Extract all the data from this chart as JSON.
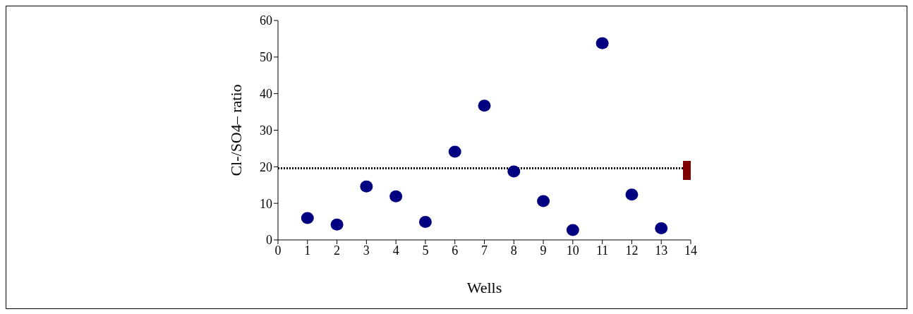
{
  "chart_data": {
    "type": "scatter",
    "xlabel": "Wells",
    "ylabel": "Cl-/SO4– ratio",
    "series": [
      {
        "color": "#000080",
        "marker": "circle",
        "x": [
          1,
          2,
          3,
          4,
          5,
          6,
          7,
          8,
          9,
          10,
          11,
          12,
          13
        ],
        "values": [
          6.0,
          4.2,
          14.6,
          11.9,
          4.9,
          24.1,
          36.7,
          18.7,
          10.6,
          2.7,
          53.8,
          12.4,
          3.2
        ]
      },
      {
        "color": "#800000",
        "marker": "square",
        "x": [
          14
        ],
        "values": [
          19.1
        ]
      }
    ],
    "ref_lines": [
      {
        "axis": "y",
        "value": 19.6,
        "color": "#000000",
        "line_style": "dotted"
      }
    ],
    "xlim": [
      0,
      14
    ],
    "xticks": [
      0,
      1,
      2,
      3,
      4,
      5,
      6,
      7,
      8,
      9,
      10,
      11,
      12,
      13,
      14
    ],
    "ylim": [
      0,
      60
    ],
    "yticks": [
      0,
      10,
      20,
      30,
      40,
      50,
      60
    ],
    "grid": false,
    "legend": false
  }
}
